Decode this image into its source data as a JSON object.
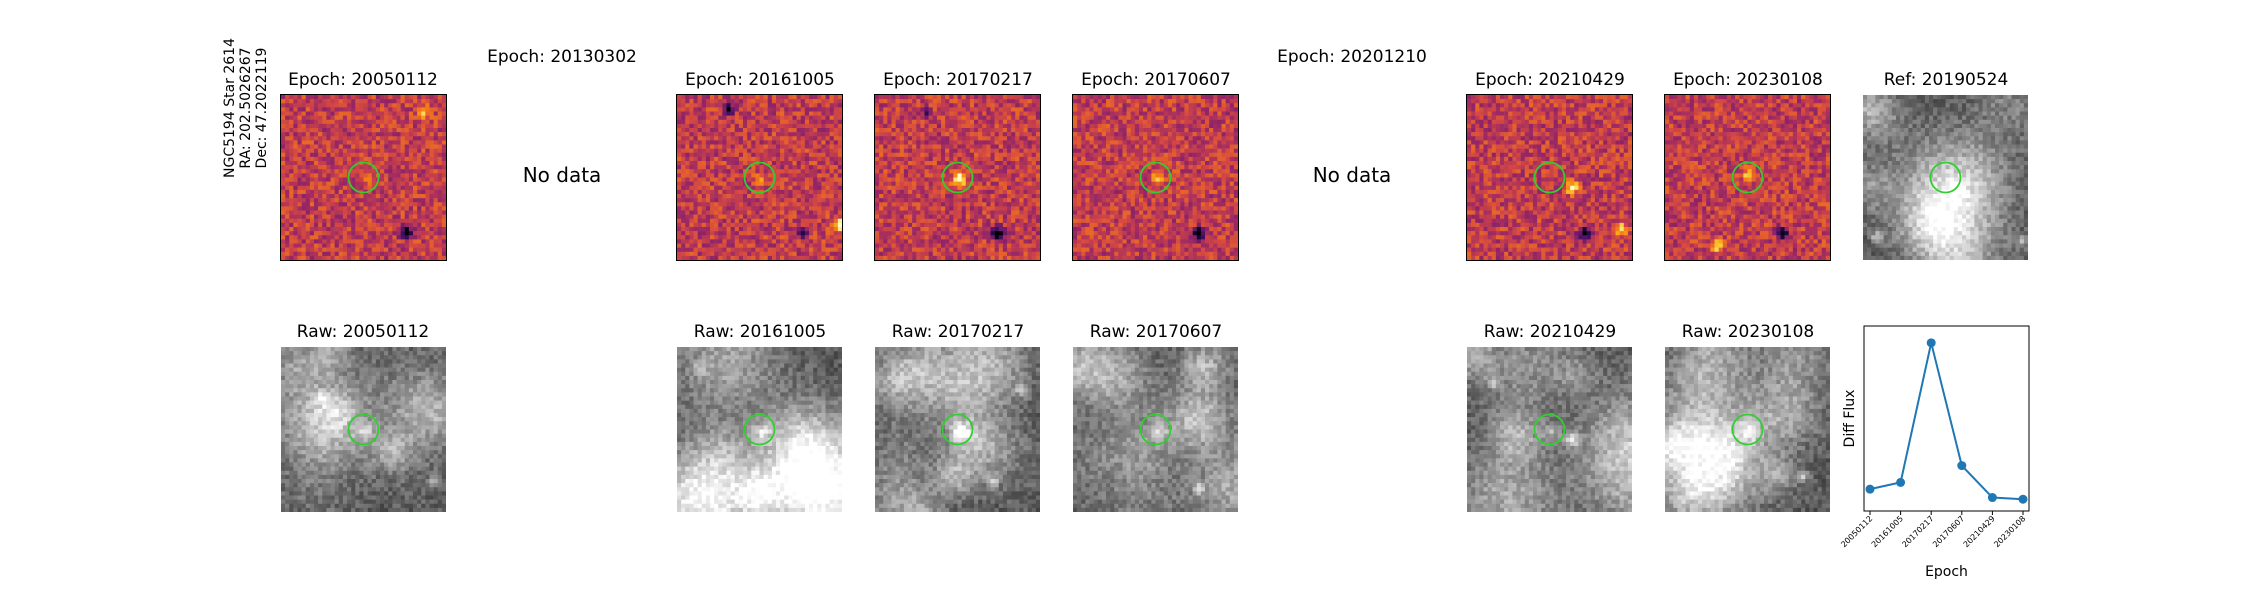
{
  "target": {
    "name": "NGC5194 Star 2614",
    "ra": "RA: 202.5026267",
    "dec": "Dec: 47.2022119"
  },
  "no_data_label": "No data",
  "diff_panels": [
    {
      "title": "Epoch: 20050112",
      "has_data": true
    },
    {
      "title": "Epoch: 20130302",
      "has_data": false
    },
    {
      "title": "Epoch: 20161005",
      "has_data": true
    },
    {
      "title": "Epoch: 20170217",
      "has_data": true
    },
    {
      "title": "Epoch: 20170607",
      "has_data": true
    },
    {
      "title": "Epoch: 20201210",
      "has_data": false
    },
    {
      "title": "Epoch: 20210429",
      "has_data": true
    },
    {
      "title": "Epoch: 20230108",
      "has_data": true
    },
    {
      "title": "Ref: 20190524",
      "has_data": true
    }
  ],
  "raw_panels": [
    {
      "title": "Raw: 20050112"
    },
    {
      "title": "Raw: 20161005"
    },
    {
      "title": "Raw: 20170217"
    },
    {
      "title": "Raw: 20170607"
    },
    {
      "title": "Raw: 20210429"
    },
    {
      "title": "Raw: 20230108"
    }
  ],
  "colors": {
    "aperture": "#33cc33",
    "series": "#1f77b4",
    "diff_base": "#b04a8a",
    "raw_base": "#7a7a7a"
  },
  "chart_data": {
    "type": "line",
    "xlabel": "Epoch",
    "ylabel": "Diff Flux",
    "categories": [
      "20050112",
      "20161005",
      "20170217",
      "20170607",
      "20210429",
      "20230108"
    ],
    "values": [
      0.08,
      0.12,
      0.95,
      0.22,
      0.03,
      0.02
    ],
    "ylim": [
      -0.05,
      1.05
    ],
    "grid": false,
    "y_ticks_shown": false
  }
}
